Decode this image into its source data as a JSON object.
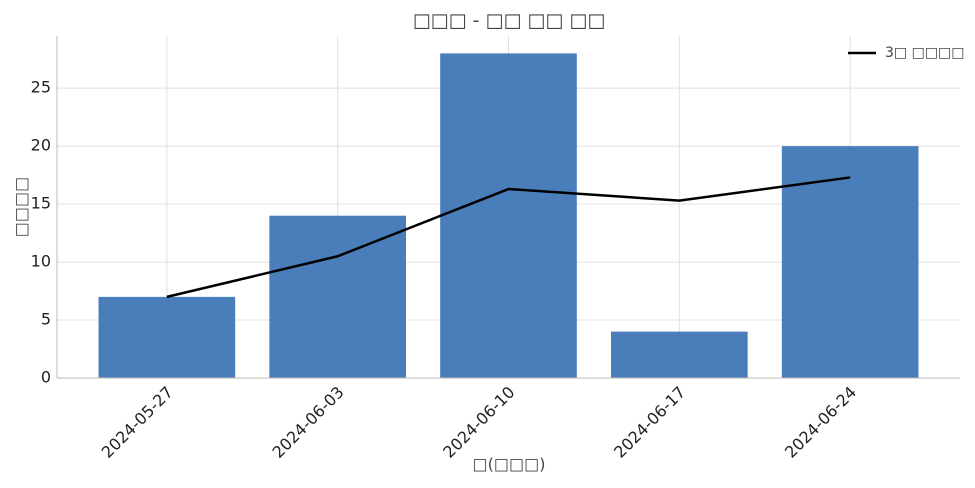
{
  "chart_data": {
    "type": "bar",
    "title": "□□□ - □□ □□ □□",
    "x_label": "□(□□□)",
    "y_label": "□□□□",
    "categories": [
      "2024-05-27",
      "2024-06-03",
      "2024-06-10",
      "2024-06-17",
      "2024-06-24"
    ],
    "values": [
      7,
      14,
      28,
      4,
      20
    ],
    "color": "#3f77b6",
    "series": [
      {
        "name": "3□ □□□□",
        "type": "line",
        "color": "#000000",
        "values": [
          7,
          10.5,
          16.3,
          15.3,
          17.3
        ]
      }
    ],
    "ylim": [
      0,
      29.5
    ],
    "yticks": [
      0,
      5,
      10,
      15,
      20,
      25
    ],
    "grid": true,
    "legend": "upper right"
  }
}
